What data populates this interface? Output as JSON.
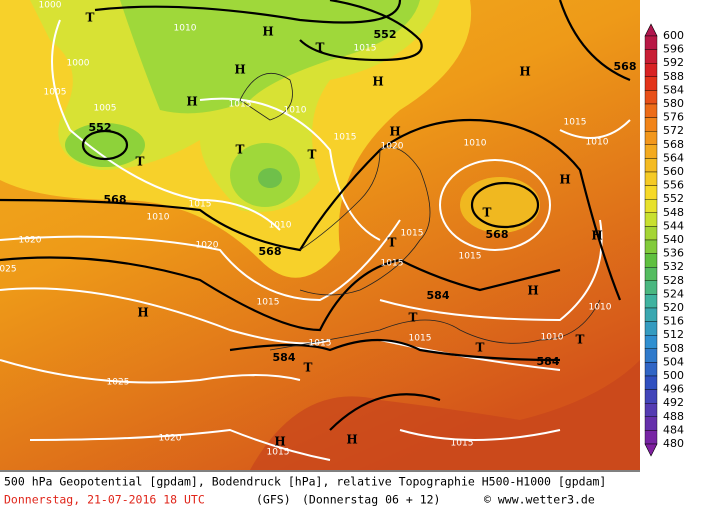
{
  "map": {
    "labels": [
      "T",
      "1000",
      "1010",
      "H",
      "552",
      "1015",
      "T",
      "1000",
      "H",
      "H",
      "1005",
      "1005",
      "H",
      "1015",
      "1010",
      "552",
      "T",
      "T",
      "T",
      "H",
      "1015",
      "1020",
      "1010",
      "1015",
      "1010",
      "H",
      "568",
      "568",
      "1015",
      "1010",
      "T",
      "1020",
      "1020",
      "568",
      "1010",
      "T",
      "1015",
      "1015",
      "568",
      "H",
      "H",
      "1015",
      "025",
      "1015",
      "584",
      "H",
      "1010",
      "H",
      "T",
      "1015",
      "1010",
      "T",
      "1015",
      "T",
      "584",
      "T",
      "584",
      "1025",
      "1020",
      "H",
      "1015",
      "H",
      "1015"
    ]
  },
  "legend": {
    "values": [
      600,
      596,
      592,
      588,
      584,
      580,
      576,
      572,
      568,
      564,
      560,
      556,
      552,
      548,
      544,
      540,
      536,
      532,
      528,
      524,
      520,
      516,
      512,
      508,
      504,
      500,
      496,
      492,
      488,
      484,
      480
    ]
  },
  "footer": {
    "line1": "500 hPa Geopotential [gpdam], Bodendruck [hPa], relative Topographie H500-H1000 [gpdam]",
    "date": "Donnerstag, 21-07-2016  18 UTC",
    "model": "(GFS)",
    "run": "(Donnerstag 06 + 12)",
    "credit": "© www.wetter3.de"
  }
}
